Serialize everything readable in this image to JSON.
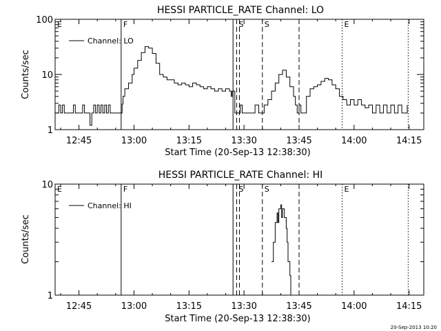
{
  "stamp": "20-Sep-2013 10:20",
  "chart_data": [
    {
      "type": "line",
      "title": "HESSI PARTICLE_RATE Channel: LO",
      "ylabel": "Counts/sec",
      "xlabel": "Start Time (20-Sep-13 12:38:30)",
      "y_scale": "log",
      "ylim": [
        1,
        100
      ],
      "y_ticks": [
        {
          "value": 1,
          "label": "1"
        },
        {
          "value": 10,
          "label": "10"
        },
        {
          "value": 100,
          "label": "100"
        }
      ],
      "xlim": [
        "12:38:30",
        "14:19:00"
      ],
      "x_ticks": [
        "12:45",
        "13:00",
        "13:15",
        "13:30",
        "13:45",
        "14:00",
        "14:15"
      ],
      "legend": {
        "label": "Channel: LO",
        "position": "top-left"
      },
      "markers": [
        {
          "label": "E",
          "time": "12:38:30",
          "style": "none"
        },
        {
          "label": "F",
          "time": "12:56:30",
          "style": "solid"
        },
        {
          "label": "",
          "time": "13:27:00",
          "style": "solid"
        },
        {
          "label": "S",
          "time": "13:28:00",
          "style": "dashed"
        },
        {
          "label": "",
          "time": "13:28:45",
          "style": "dashed"
        },
        {
          "label": "S",
          "time": "13:35:00",
          "style": "dashed"
        },
        {
          "label": "",
          "time": "13:45:00",
          "style": "dashed"
        },
        {
          "label": "E",
          "time": "13:56:45",
          "style": "dotted"
        },
        {
          "label": "",
          "time": "14:14:45",
          "style": "dotted"
        }
      ],
      "series": [
        {
          "name": "Channel: LO",
          "points": [
            [
              "12:38:30",
              2
            ],
            [
              "12:39:30",
              2.8
            ],
            [
              "12:40:00",
              2
            ],
            [
              "12:40:30",
              2.8
            ],
            [
              "12:41:00",
              2
            ],
            [
              "12:43:00",
              2
            ],
            [
              "12:43:30",
              2.8
            ],
            [
              "12:44:00",
              2
            ],
            [
              "12:45:30",
              2
            ],
            [
              "12:46:00",
              2.8
            ],
            [
              "12:46:30",
              2
            ],
            [
              "12:47:30",
              2
            ],
            [
              "12:48:00",
              1.2
            ],
            [
              "12:48:30",
              2
            ],
            [
              "12:49:00",
              2.8
            ],
            [
              "12:49:30",
              2
            ],
            [
              "12:50:00",
              2.8
            ],
            [
              "12:50:30",
              2
            ],
            [
              "12:51:00",
              2.8
            ],
            [
              "12:51:30",
              2
            ],
            [
              "12:52:00",
              2.8
            ],
            [
              "12:52:30",
              2
            ],
            [
              "12:53:00",
              2.8
            ],
            [
              "12:53:30",
              2
            ],
            [
              "12:56:30",
              2
            ],
            [
              "12:56:45",
              2.9
            ],
            [
              "12:57:00",
              4
            ],
            [
              "12:57:30",
              5.5
            ],
            [
              "12:58:30",
              7
            ],
            [
              "12:59:30",
              10
            ],
            [
              "13:00:00",
              13
            ],
            [
              "13:01:00",
              18
            ],
            [
              "13:02:00",
              25
            ],
            [
              "13:03:00",
              32
            ],
            [
              "13:04:00",
              30
            ],
            [
              "13:05:00",
              24
            ],
            [
              "13:06:00",
              16
            ],
            [
              "13:07:00",
              10
            ],
            [
              "13:08:00",
              9
            ],
            [
              "13:09:00",
              8
            ],
            [
              "13:10:00",
              8
            ],
            [
              "13:11:00",
              7
            ],
            [
              "13:12:00",
              6.5
            ],
            [
              "13:13:00",
              7
            ],
            [
              "13:14:00",
              6.5
            ],
            [
              "13:15:00",
              6
            ],
            [
              "13:16:00",
              7
            ],
            [
              "13:17:00",
              6.5
            ],
            [
              "13:18:00",
              6
            ],
            [
              "13:19:00",
              5.5
            ],
            [
              "13:20:00",
              6
            ],
            [
              "13:21:00",
              5.5
            ],
            [
              "13:22:00",
              5
            ],
            [
              "13:23:00",
              5.5
            ],
            [
              "13:24:00",
              5
            ],
            [
              "13:25:00",
              5.5
            ],
            [
              "13:26:00",
              5
            ],
            [
              "13:26:30",
              4
            ],
            [
              "13:26:45",
              5
            ],
            [
              "13:27:00",
              5
            ],
            [
              "13:27:30",
              2
            ],
            [
              "13:28:30",
              2
            ],
            [
              "13:29:00",
              2.8
            ],
            [
              "13:29:30",
              2
            ],
            [
              "13:32:00",
              2
            ],
            [
              "13:33:00",
              2.8
            ],
            [
              "13:34:00",
              2
            ],
            [
              "13:35:30",
              2.8
            ],
            [
              "13:36:30",
              3.5
            ],
            [
              "13:37:30",
              5
            ],
            [
              "13:38:30",
              7
            ],
            [
              "13:39:30",
              10
            ],
            [
              "13:40:30",
              12
            ],
            [
              "13:41:30",
              9
            ],
            [
              "13:42:30",
              6
            ],
            [
              "13:43:30",
              4
            ],
            [
              "13:44:00",
              2.8
            ],
            [
              "13:44:30",
              2
            ],
            [
              "13:45:00",
              2.8
            ],
            [
              "13:45:30",
              2
            ],
            [
              "13:46:30",
              2
            ],
            [
              "13:47:00",
              4
            ],
            [
              "13:48:00",
              5.5
            ],
            [
              "13:49:00",
              6
            ],
            [
              "13:50:00",
              6.5
            ],
            [
              "13:51:00",
              7.5
            ],
            [
              "13:52:00",
              8.5
            ],
            [
              "13:53:00",
              8
            ],
            [
              "13:54:00",
              6.5
            ],
            [
              "13:55:00",
              5.5
            ],
            [
              "13:56:00",
              4
            ],
            [
              "13:57:00",
              3.5
            ],
            [
              "13:58:00",
              2.8
            ],
            [
              "13:59:00",
              3.5
            ],
            [
              "14:00:00",
              2.8
            ],
            [
              "14:01:00",
              3.5
            ],
            [
              "14:02:00",
              2.8
            ],
            [
              "14:03:00",
              2.5
            ],
            [
              "14:04:00",
              2.8
            ],
            [
              "14:05:00",
              2
            ],
            [
              "14:06:00",
              2.8
            ],
            [
              "14:07:00",
              2
            ],
            [
              "14:08:00",
              2.8
            ],
            [
              "14:09:00",
              2
            ],
            [
              "14:10:00",
              2.8
            ],
            [
              "14:11:00",
              2
            ],
            [
              "14:12:00",
              2.8
            ],
            [
              "14:13:00",
              2
            ],
            [
              "14:14:30",
              2.8
            ]
          ]
        }
      ]
    },
    {
      "type": "line",
      "title": "HESSI PARTICLE_RATE Channel: HI",
      "ylabel": "Counts/sec",
      "xlabel": "Start Time (20-Sep-13 12:38:30)",
      "y_scale": "log",
      "ylim": [
        1,
        10
      ],
      "y_ticks": [
        {
          "value": 1,
          "label": "1"
        },
        {
          "value": 10,
          "label": "10"
        }
      ],
      "xlim": [
        "12:38:30",
        "14:19:00"
      ],
      "x_ticks": [
        "12:45",
        "13:00",
        "13:15",
        "13:30",
        "13:45",
        "14:00",
        "14:15"
      ],
      "legend": {
        "label": "Channel: HI",
        "position": "top-left"
      },
      "markers": [
        {
          "label": "E",
          "time": "12:38:30",
          "style": "none"
        },
        {
          "label": "F",
          "time": "12:56:30",
          "style": "solid"
        },
        {
          "label": "",
          "time": "13:27:00",
          "style": "solid"
        },
        {
          "label": "S",
          "time": "13:28:00",
          "style": "dashed"
        },
        {
          "label": "",
          "time": "13:28:45",
          "style": "dashed"
        },
        {
          "label": "S",
          "time": "13:35:00",
          "style": "dashed"
        },
        {
          "label": "",
          "time": "13:45:00",
          "style": "dashed"
        },
        {
          "label": "E",
          "time": "13:56:45",
          "style": "dotted"
        },
        {
          "label": "",
          "time": "14:14:45",
          "style": "dotted"
        }
      ],
      "series": [
        {
          "name": "Channel: HI",
          "points": [
            [
              "13:37:30",
              2
            ],
            [
              "13:37:45",
              2
            ],
            [
              "13:38:00",
              3
            ],
            [
              "13:38:30",
              4.5
            ],
            [
              "13:39:00",
              5.5
            ],
            [
              "13:39:15",
              4.5
            ],
            [
              "13:39:30",
              6
            ],
            [
              "13:40:00",
              6.5
            ],
            [
              "13:40:15",
              5
            ],
            [
              "13:40:30",
              6
            ],
            [
              "13:41:00",
              5
            ],
            [
              "13:41:30",
              4
            ],
            [
              "13:41:45",
              3
            ],
            [
              "13:42:00",
              2
            ],
            [
              "13:42:30",
              1.5
            ],
            [
              "13:42:45",
              1
            ]
          ]
        }
      ]
    }
  ]
}
